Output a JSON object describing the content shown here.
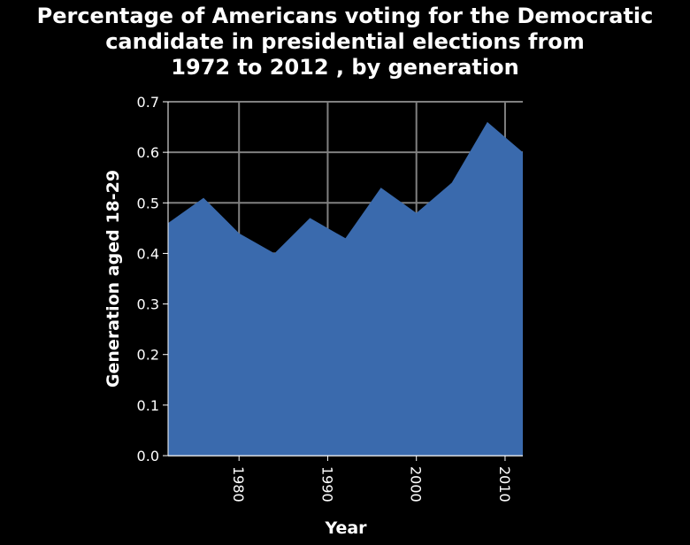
{
  "chart_data": {
    "type": "area",
    "title": "Percentage of Americans voting for the Democratic\ncandidate in presidential elections from\n1972 to 2012 , by generation",
    "xlabel": "Year",
    "ylabel": "Generation aged 18-29",
    "x": [
      1972,
      1976,
      1980,
      1984,
      1988,
      1992,
      1996,
      2000,
      2004,
      2008,
      2012
    ],
    "series": [
      {
        "values": [
          0.46,
          0.51,
          0.44,
          0.4,
          0.47,
          0.43,
          0.53,
          0.48,
          0.54,
          0.66,
          0.6
        ]
      }
    ],
    "xlim": [
      1972,
      2012
    ],
    "ylim": [
      0.0,
      0.7
    ],
    "xticks": [
      "1980",
      "1990",
      "2000",
      "2010"
    ],
    "yticks": [
      "0.0",
      "0.1",
      "0.2",
      "0.3",
      "0.4",
      "0.5",
      "0.6",
      "0.7"
    ],
    "grid": true,
    "colors": {
      "fill": "#3a6aad",
      "background": "#000000",
      "grid": "#808080",
      "text": "#ffffff"
    }
  }
}
